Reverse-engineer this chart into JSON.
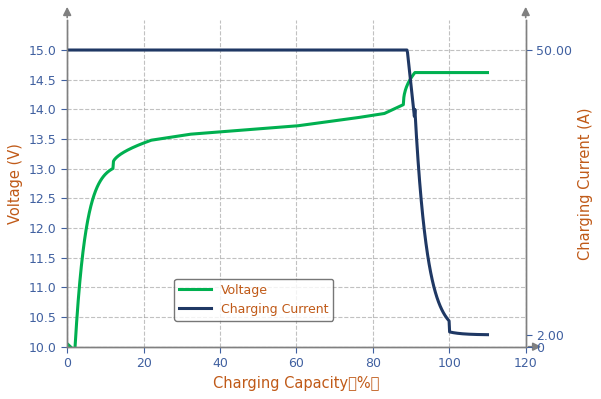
{
  "xlabel": "Charging Capacity（%）",
  "ylabel_left": "Voltage (V)",
  "ylabel_right": "Charging Current (A)",
  "xlim": [
    0,
    120
  ],
  "ylim_left": [
    10.0,
    15.5
  ],
  "ylim_right": [
    0,
    55
  ],
  "yticks_left": [
    10.0,
    10.5,
    11.0,
    11.5,
    12.0,
    12.5,
    13.0,
    13.5,
    14.0,
    14.5,
    15.0
  ],
  "yticks_right_vals": [
    0,
    2.0,
    50.0
  ],
  "yticks_right_labels": [
    "0",
    "2.00",
    "50.00"
  ],
  "xticks": [
    0,
    20,
    40,
    60,
    80,
    100,
    120
  ],
  "voltage_color": "#00b050",
  "current_color": "#1f3864",
  "legend_voltage": "Voltage",
  "legend_current": "Charging Current",
  "grid_color": "#999999",
  "spine_color": "#808080",
  "label_color": "#c05a18",
  "tick_color": "#4472c4",
  "background_color": "#ffffff"
}
